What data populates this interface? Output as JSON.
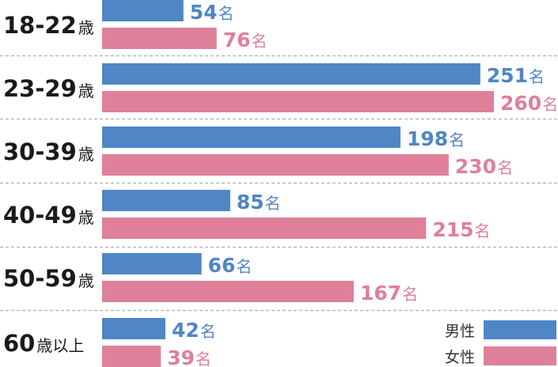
{
  "chart_data": {
    "type": "bar",
    "orientation": "horizontal",
    "categories": [
      {
        "num": "18-22",
        "unit": "歳"
      },
      {
        "num": "23-29",
        "unit": "歳"
      },
      {
        "num": "30-39",
        "unit": "歳"
      },
      {
        "num": "40-49",
        "unit": "歳"
      },
      {
        "num": "50-59",
        "unit": "歳"
      },
      {
        "num": "60",
        "unit": "歳以上"
      }
    ],
    "series": [
      {
        "name": "男性",
        "color": "#4f86c6",
        "values": [
          54,
          251,
          198,
          85,
          66,
          42
        ]
      },
      {
        "name": "女性",
        "color": "#de8099",
        "values": [
          76,
          260,
          230,
          215,
          167,
          39
        ]
      }
    ],
    "value_unit": "名",
    "xlim": [
      0,
      260
    ],
    "gridlines": "dashed separators between groups",
    "legend_position": "bottom-right"
  }
}
